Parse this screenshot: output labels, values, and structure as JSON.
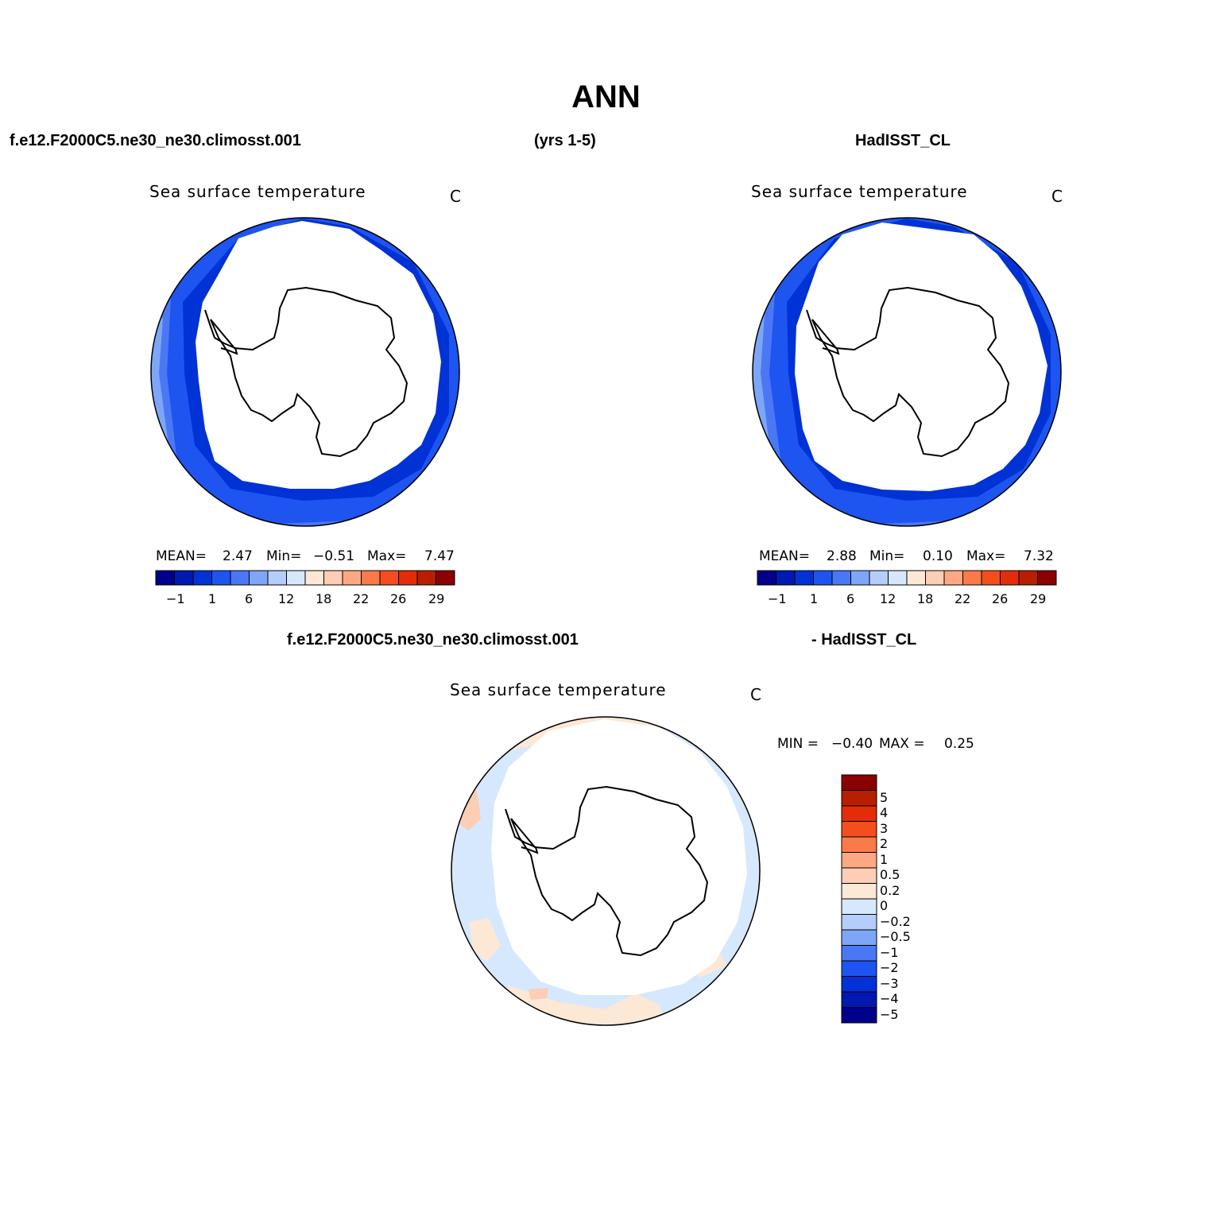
{
  "page": {
    "title": "ANN",
    "case_name": "f.e12.F2000C5.ne30_ne30.climosst.001",
    "years": "(yrs 1-5)",
    "obs_name": "HadISST_CL",
    "diff_case_name": "f.e12.F2000C5.ne30_ne30.climosst.001",
    "diff_obs_name": "- HadISST_CL"
  },
  "panels": {
    "model": {
      "title": "Sea surface temperature",
      "units": "C",
      "mean_label": "MEAN=",
      "mean_value": "2.47",
      "min_label": "Min=",
      "min_value": "−0.51",
      "max_label": "Max=",
      "max_value": "7.47"
    },
    "obs": {
      "title": "Sea surface temperature",
      "units": "C",
      "mean_label": "MEAN=",
      "mean_value": "2.88",
      "min_label": "Min=",
      "min_value": "0.10",
      "max_label": "Max=",
      "max_value": "7.32"
    },
    "diff": {
      "title": "Sea surface temperature",
      "units": "C",
      "min_label": "MIN =",
      "min_value": "−0.40",
      "max_label": "MAX =",
      "max_value": "0.25"
    }
  },
  "colorbars": {
    "sst": {
      "colors": [
        "#00008b",
        "#0019b0",
        "#0032d6",
        "#1e55f0",
        "#4a78f5",
        "#7ea6f8",
        "#b4cdfb",
        "#d6e8fd",
        "#fde8d6",
        "#fdcdb4",
        "#fca983",
        "#fa7a4a",
        "#f54e1e",
        "#e22d08",
        "#b81e00",
        "#8b0000"
      ],
      "tick_labels": [
        "−1",
        "1",
        "6",
        "12",
        "18",
        "22",
        "26",
        "29"
      ]
    },
    "diff": {
      "colors": [
        "#8b0000",
        "#b81e00",
        "#e22d08",
        "#f54e1e",
        "#fa7a4a",
        "#fca983",
        "#fdcdb4",
        "#fde8d6",
        "#d6e8fd",
        "#b4cdfb",
        "#7ea6f8",
        "#4a78f5",
        "#1e55f0",
        "#0032d6",
        "#0019b0",
        "#00008b"
      ],
      "tick_labels": [
        "5",
        "4",
        "3",
        "2",
        "1",
        "0.5",
        "0.2",
        "0",
        "−0.2",
        "−0.5",
        "−1",
        "−2",
        "−3",
        "−4",
        "−5"
      ]
    }
  }
}
